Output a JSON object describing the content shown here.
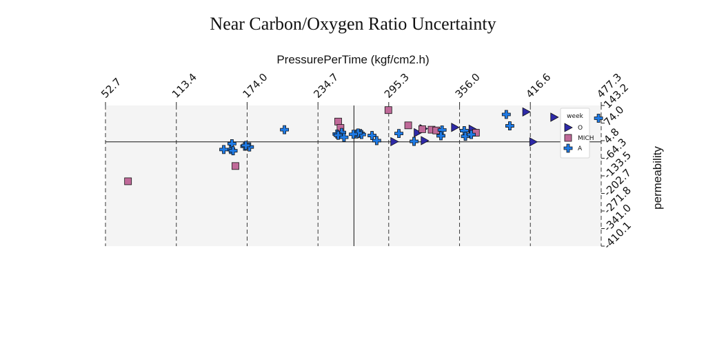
{
  "chart_data": {
    "type": "scatter",
    "title": "Near Carbon/Oxygen Ratio Uncertainty",
    "xlabel": "PressurePerTime (kgf/cm2.h)",
    "ylabel": "permeability",
    "x_ticks": [
      "52.7",
      "113.4",
      "174.0",
      "234.7",
      "295.3",
      "356.0",
      "416.6",
      "477.3"
    ],
    "y_ticks": [
      "143.2",
      "74.0",
      "4.8",
      "-64.3",
      "-133.5",
      "-202.7",
      "-271.8",
      "-341.0",
      "-410.1"
    ],
    "xlim": [
      52.7,
      477.3
    ],
    "ylim": [
      -410.1,
      143.2
    ],
    "grid": "x-dashed",
    "legend_position": "top-right",
    "legend_title": "week",
    "series": [
      {
        "name": "O",
        "marker": "triangle-right",
        "color": "#2e2aa8",
        "points": [
          [
            326,
            5
          ],
          [
            300,
            1
          ],
          [
            352,
            57
          ],
          [
            367,
            50
          ],
          [
            320,
            36
          ],
          [
            325,
            52
          ],
          [
            413,
            118
          ],
          [
            437,
            97
          ],
          [
            419,
            0
          ]
        ]
      },
      {
        "name": "MICH",
        "marker": "square",
        "color": "#c06a99",
        "points": [
          [
            252,
            80
          ],
          [
            295,
            125
          ],
          [
            254,
            55
          ],
          [
            312,
            65
          ],
          [
            332,
            48
          ],
          [
            336,
            45
          ],
          [
            324,
            50
          ],
          [
            370,
            36
          ],
          [
            164,
            -95
          ],
          [
            72,
            -155
          ]
        ]
      },
      {
        "name": "A",
        "marker": "plus",
        "color": "#1f7be6",
        "points": [
          [
            268,
            31
          ],
          [
            271,
            33
          ],
          [
            272,
            29
          ],
          [
            269,
            35
          ],
          [
            255,
            37
          ],
          [
            251,
            31
          ],
          [
            252,
            26
          ],
          [
            257,
            18
          ],
          [
            281,
            25
          ],
          [
            341,
            47
          ],
          [
            399,
            63
          ],
          [
            475,
            93
          ],
          [
            360,
            44
          ],
          [
            396,
            108
          ],
          [
            449,
            43
          ],
          [
            160,
            -30
          ],
          [
            172,
            -17
          ],
          [
            161,
            -7
          ],
          [
            176,
            -20
          ],
          [
            154,
            -30
          ],
          [
            206,
            48
          ],
          [
            162,
            -35
          ],
          [
            265,
            30
          ],
          [
            304,
            33
          ],
          [
            361,
            22
          ],
          [
            285,
            5
          ],
          [
            173,
            -14
          ],
          [
            317,
            2
          ],
          [
            366,
            29
          ],
          [
            340,
            24
          ],
          [
            453,
            0
          ]
        ]
      }
    ]
  }
}
